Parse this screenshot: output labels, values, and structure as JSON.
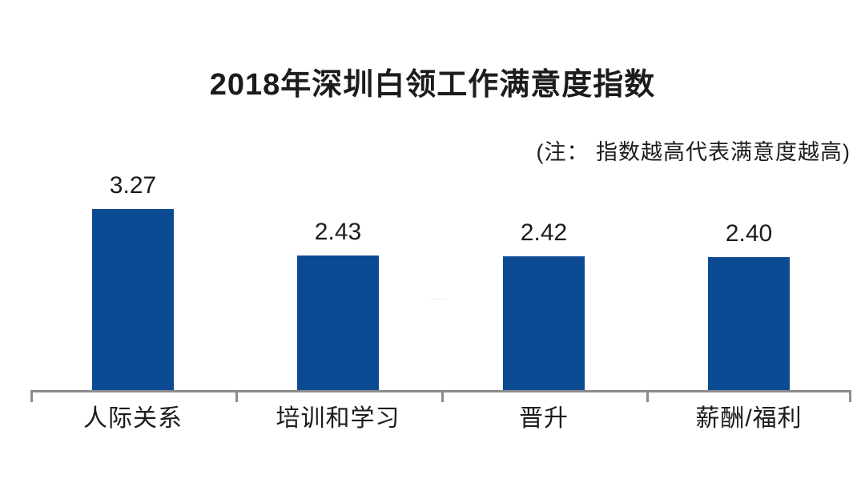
{
  "page": {
    "title": "2018年深圳白领工作满意度指数",
    "note": "(注： 指数越高代表满意度越高)"
  },
  "chart_data": {
    "type": "bar",
    "orientation": "vertical",
    "title": "2018年深圳白领工作满意度指数",
    "annotation": "(注： 指数越高代表满意度越高)",
    "categories": [
      "人际关系",
      "培训和学习",
      "晋升",
      "薪酬/福利"
    ],
    "values": [
      3.27,
      2.43,
      2.42,
      2.4
    ],
    "value_labels": [
      "3.27",
      "2.43",
      "2.42",
      "2.40"
    ],
    "xlabel": "",
    "ylabel": "",
    "ylim": [
      0,
      3.5
    ],
    "grid": false,
    "legend": "none",
    "colors": {
      "bar": "#0d4a94",
      "axis": "#8c8c8c",
      "text": "#1c1c1c",
      "background": "#ffffff"
    }
  },
  "artifact": {
    "mark": "·····"
  }
}
